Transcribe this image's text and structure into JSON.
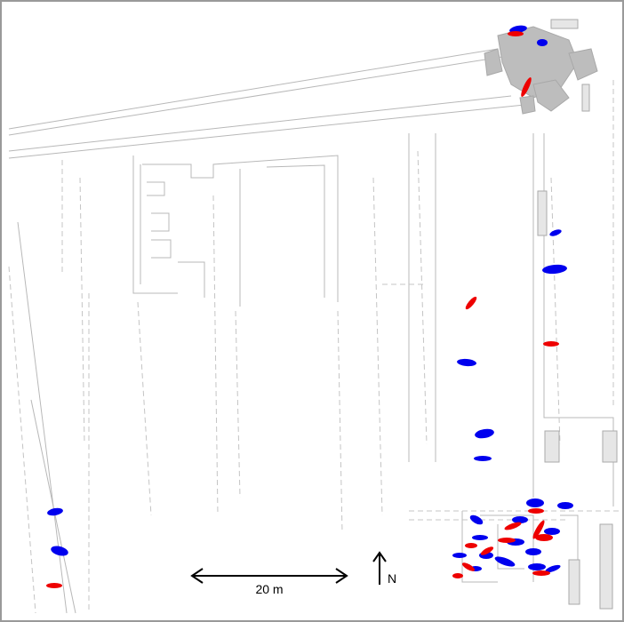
{
  "scale_bar": {
    "label": "20 m"
  },
  "north_arrow": {
    "label": "N"
  }
}
